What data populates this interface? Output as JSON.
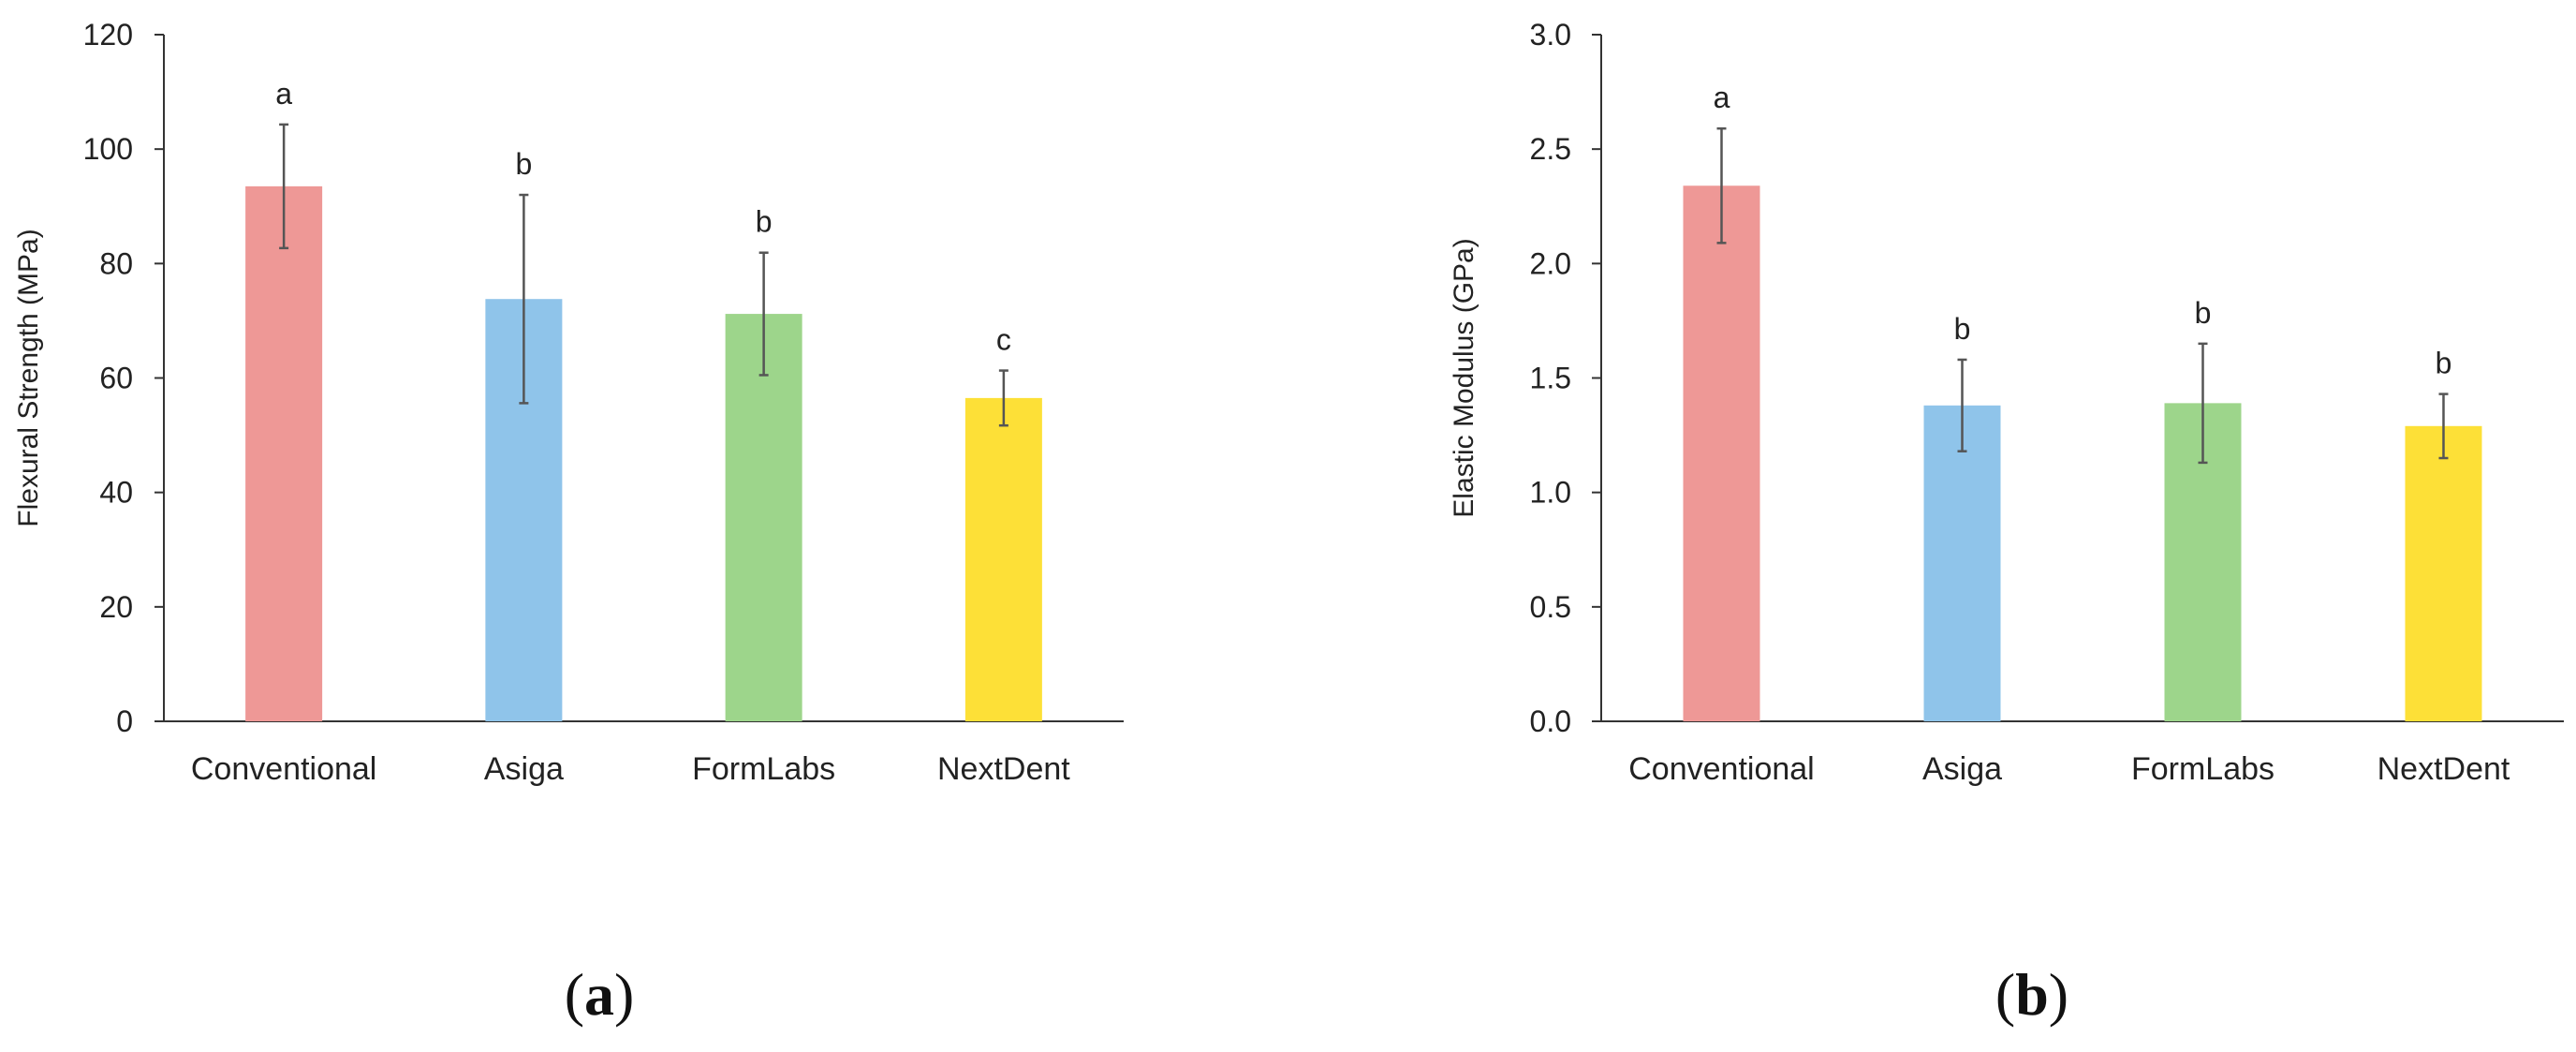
{
  "chart_data": [
    {
      "type": "bar",
      "title": "",
      "xlabel": "",
      "ylabel": "Flexural Strength (MPa)",
      "ylim": [
        0,
        120
      ],
      "yticks": [
        "0",
        "20",
        "40",
        "60",
        "80",
        "100",
        "120"
      ],
      "ytick_values": [
        0,
        20,
        40,
        60,
        80,
        100,
        120
      ],
      "categories": [
        "Conventional",
        "Asiga",
        "FormLabs",
        "NextDent"
      ],
      "values": [
        93.5,
        73.8,
        71.2,
        56.5
      ],
      "errors": [
        10.8,
        18.2,
        10.7,
        4.8
      ],
      "significance": [
        "a",
        "b",
        "b",
        "c"
      ],
      "colors": [
        "#ee9896",
        "#8fc4ea",
        "#9dd58b",
        "#fde037"
      ],
      "caption": "a"
    },
    {
      "type": "bar",
      "title": "",
      "xlabel": "",
      "ylabel": "Elastic Modulus (GPa)",
      "ylim": [
        0,
        3.0
      ],
      "yticks": [
        "0.0",
        "0.5",
        "1.0",
        "1.5",
        "2.0",
        "2.5",
        "3.0"
      ],
      "ytick_values": [
        0,
        0.5,
        1.0,
        1.5,
        2.0,
        2.5,
        3.0
      ],
      "categories": [
        "Conventional",
        "Asiga",
        "FormLabs",
        "NextDent"
      ],
      "values": [
        2.34,
        1.38,
        1.39,
        1.29
      ],
      "errors": [
        0.25,
        0.2,
        0.26,
        0.14
      ],
      "significance": [
        "a",
        "b",
        "b",
        "b"
      ],
      "colors": [
        "#ee9896",
        "#8fc4ea",
        "#9dd58b",
        "#fde037"
      ],
      "caption": "b"
    }
  ]
}
